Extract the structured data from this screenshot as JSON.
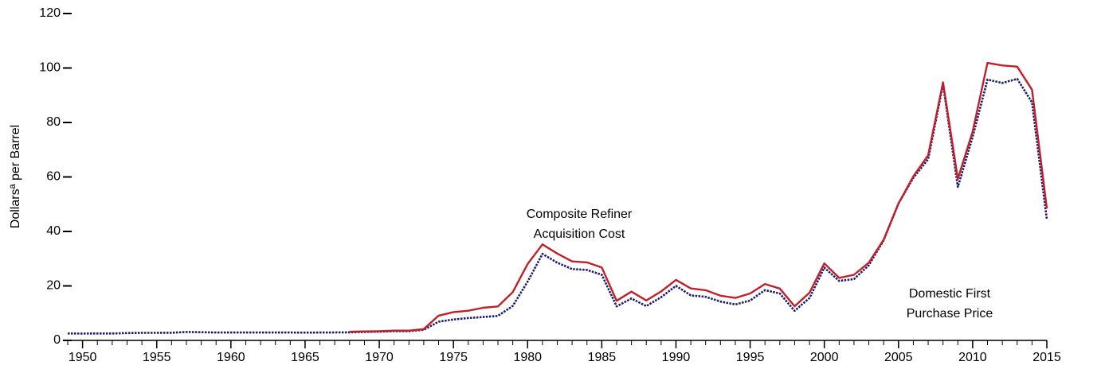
{
  "chart_data": {
    "type": "line",
    "y_label": "Dollarsª per Barrel",
    "x": [
      1949,
      1950,
      1951,
      1952,
      1953,
      1954,
      1955,
      1956,
      1957,
      1958,
      1959,
      1960,
      1961,
      1962,
      1963,
      1964,
      1965,
      1966,
      1967,
      1968,
      1969,
      1970,
      1971,
      1972,
      1973,
      1974,
      1975,
      1976,
      1977,
      1978,
      1979,
      1980,
      1981,
      1982,
      1983,
      1984,
      1985,
      1986,
      1987,
      1988,
      1989,
      1990,
      1991,
      1992,
      1993,
      1994,
      1995,
      1996,
      1997,
      1998,
      1999,
      2000,
      2001,
      2002,
      2003,
      2004,
      2005,
      2006,
      2007,
      2008,
      2009,
      2010,
      2011,
      2012,
      2013,
      2014,
      2015
    ],
    "series": [
      {
        "name": "Domestic First Purchase Price",
        "color": "#1a1a6e",
        "dashed": true,
        "values": [
          2.54,
          2.51,
          2.53,
          2.53,
          2.68,
          2.78,
          2.77,
          2.79,
          3.09,
          3.01,
          2.9,
          2.88,
          2.89,
          2.9,
          2.89,
          2.88,
          2.86,
          2.88,
          2.92,
          2.94,
          3.09,
          3.18,
          3.39,
          3.39,
          3.89,
          6.87,
          7.67,
          8.19,
          8.57,
          9.0,
          12.64,
          21.59,
          31.77,
          28.52,
          26.19,
          25.88,
          24.09,
          12.51,
          15.4,
          12.58,
          15.86,
          20.03,
          16.54,
          15.99,
          14.25,
          13.19,
          14.62,
          18.46,
          17.23,
          10.87,
          15.56,
          26.72,
          21.84,
          22.51,
          27.56,
          36.77,
          50.28,
          59.69,
          66.52,
          94.04,
          56.35,
          74.71,
          95.73,
          94.52,
          95.99,
          87.39,
          44.39
        ]
      },
      {
        "name": "Composite Refiner Acquisition Cost",
        "color": "#c0202a",
        "dashed": false,
        "values": [
          null,
          null,
          null,
          null,
          null,
          null,
          null,
          null,
          null,
          null,
          null,
          null,
          null,
          null,
          null,
          null,
          null,
          null,
          null,
          3.17,
          3.29,
          3.4,
          3.6,
          3.58,
          4.15,
          9.07,
          10.38,
          10.89,
          11.96,
          12.46,
          17.72,
          28.07,
          35.24,
          31.87,
          28.99,
          28.63,
          26.75,
          14.55,
          17.9,
          14.67,
          17.97,
          22.22,
          19.06,
          18.43,
          16.41,
          15.59,
          17.23,
          20.71,
          19.04,
          12.52,
          17.51,
          28.26,
          22.95,
          24.1,
          28.53,
          36.98,
          50.24,
          60.24,
          67.94,
          94.74,
          59.29,
          76.69,
          101.87,
          100.93,
          100.49,
          92.02,
          48.4
        ]
      }
    ],
    "annotations": [
      {
        "lines": [
          "Composite Refiner",
          "Acquisition Cost"
        ]
      },
      {
        "lines": [
          "Domestic First",
          "Purchase Price"
        ]
      }
    ],
    "xlim": [
      1949,
      2015
    ],
    "xticks": [
      1950,
      1955,
      1960,
      1965,
      1970,
      1975,
      1980,
      1985,
      1990,
      1995,
      2000,
      2005,
      2010,
      2015
    ],
    "xminorticks": [
      1949,
      1950,
      1951,
      1952,
      1953,
      1954,
      1955,
      1956,
      1957,
      1958,
      1959,
      1960,
      1961,
      1962,
      1963,
      1964,
      1965,
      1966,
      1967,
      1968,
      1969,
      1970,
      1971,
      1972,
      1973,
      1974,
      1975,
      1976,
      1977,
      1978,
      1979,
      1980,
      1981,
      1982,
      1983,
      1984,
      1985,
      1986,
      1987,
      1988,
      1989,
      1990,
      1991,
      1992,
      1993,
      1994,
      1995,
      1996,
      1997,
      1998,
      1999,
      2000,
      2001,
      2002,
      2003,
      2004,
      2005,
      2006,
      2007,
      2008,
      2009,
      2010,
      2011,
      2012,
      2013,
      2014,
      2015
    ],
    "ylim": [
      0,
      120
    ],
    "yticks": [
      0,
      20,
      40,
      60,
      80,
      100,
      120
    ]
  }
}
